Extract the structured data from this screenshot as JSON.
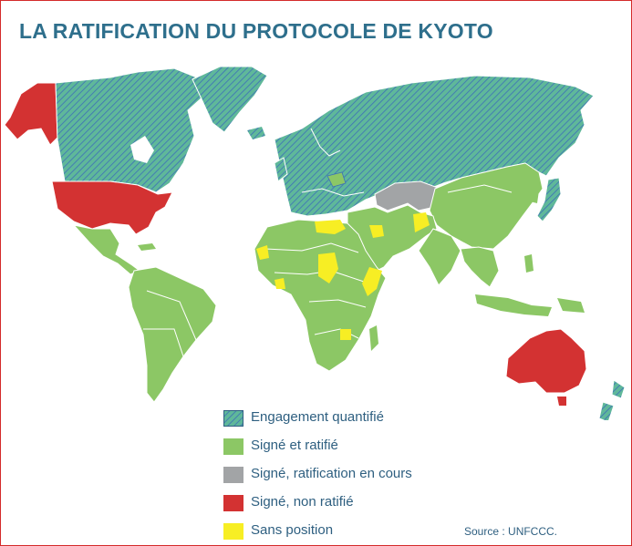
{
  "title": "LA RATIFICATION DU PROTOCOLE DE KYOTO",
  "colors": {
    "engagement": "#5fb89a",
    "engagement_hatch": "#3d6fb8",
    "signe_ratifie": "#8cc765",
    "ratification_en_cours": "#a2a4a6",
    "non_ratifie": "#d33232",
    "sans_position": "#f7ee24",
    "title": "#2e6f8c",
    "text": "#2e5f80"
  },
  "legend": [
    {
      "key": "engagement",
      "label": "Engagement quantifié"
    },
    {
      "key": "signe_ratifie",
      "label": "Signé et ratifié"
    },
    {
      "key": "ratification_en_cours",
      "label": "Signé, ratification en cours"
    },
    {
      "key": "non_ratifie",
      "label": "Signé, non ratifié"
    },
    {
      "key": "sans_position",
      "label": "Sans position"
    }
  ],
  "source": "Source : UNFCCC."
}
